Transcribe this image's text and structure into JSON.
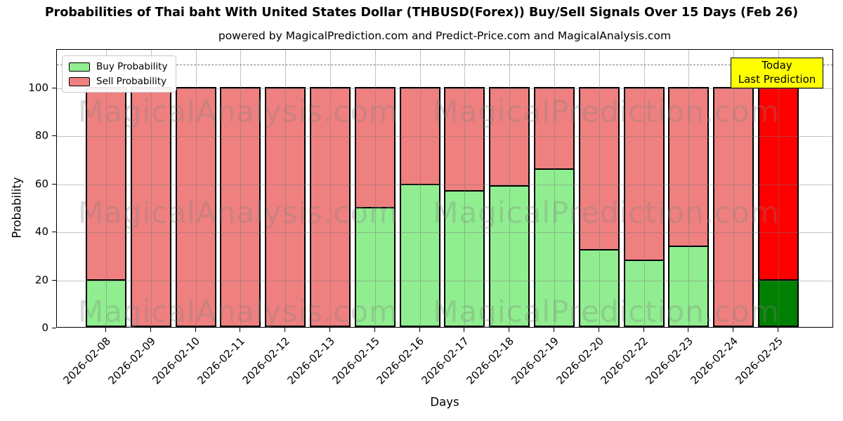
{
  "chart_data": {
    "type": "bar",
    "stacked": true,
    "title": "Probabilities of Thai baht With United States Dollar (THBUSD(Forex)) Buy/Sell Signals Over 15 Days (Feb 26)",
    "subtitle": "powered by MagicalPrediction.com and Predict-Price.com and MagicalAnalysis.com",
    "xlabel": "Days",
    "ylabel": "Probability",
    "categories": [
      "2026-02-08",
      "2026-02-09",
      "2026-02-10",
      "2026-02-11",
      "2026-02-12",
      "2026-02-13",
      "2026-02-15",
      "2026-02-16",
      "2026-02-17",
      "2026-02-18",
      "2026-02-19",
      "2026-02-20",
      "2026-02-22",
      "2026-02-23",
      "2026-02-24",
      "2026-02-25"
    ],
    "series": [
      {
        "name": "Buy Probability",
        "color": "#90EE90",
        "values": [
          20,
          0,
          0,
          0,
          0,
          0,
          50,
          59.5,
          57,
          59,
          66,
          32.5,
          28,
          34,
          0,
          20
        ]
      },
      {
        "name": "Sell Probability",
        "color": "#EF8080",
        "values": [
          80,
          100,
          100,
          100,
          100,
          100,
          50,
          40.5,
          43,
          41,
          34,
          67.5,
          72,
          66,
          100,
          80
        ]
      }
    ],
    "today": {
      "index": 15,
      "buy_color": "#008000",
      "sell_color": "#FF0000"
    },
    "yticks": [
      0,
      20,
      40,
      60,
      80,
      100
    ],
    "ylim": [
      0,
      116
    ],
    "dashed_line_y": 110,
    "grid": true,
    "legend_position": "upper left"
  },
  "annotation": {
    "line1": "Today",
    "line2": "Last Prediction",
    "bg_color": "#FFFF00"
  },
  "watermarks": {
    "left_text": "MagicalAnalysis.com",
    "right_text": "MagicalPrediction.com"
  },
  "colors": {
    "grid": "#c9c9c9",
    "dashed_line": "#7a7a7a",
    "bar_edge": "#000000",
    "background": "#ffffff"
  }
}
